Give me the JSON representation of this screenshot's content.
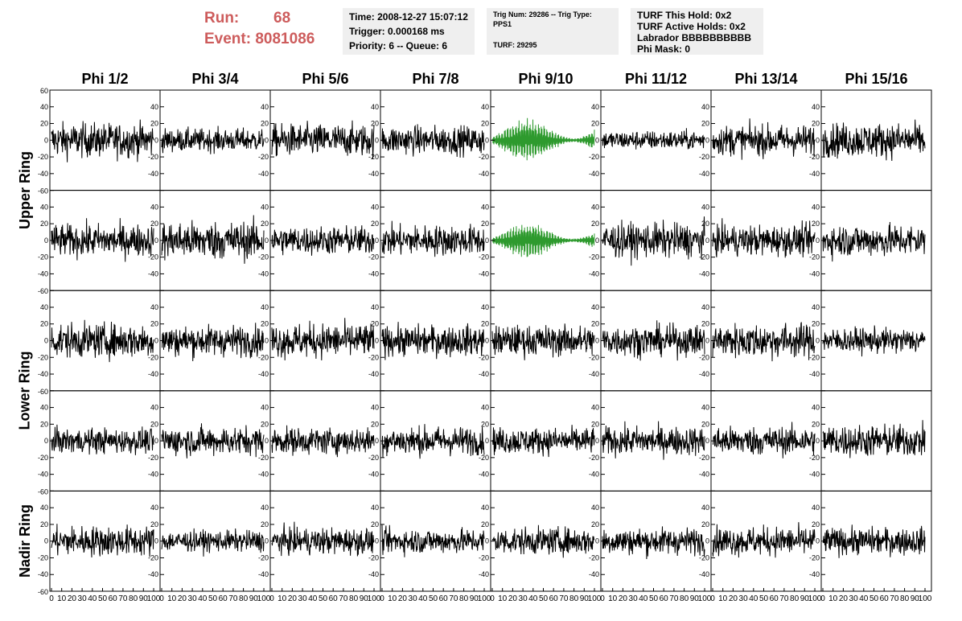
{
  "header": {
    "run_label": "Run:",
    "run_value": "68",
    "event_label": "Event:",
    "event_value": "8081086"
  },
  "info": {
    "time": "Time: 2008-12-27 15:07:12",
    "trigger": "Trigger: 0.000168 ms",
    "priority": "Priority: 6 -- Queue: 6",
    "trig_num": "Trig Num: 29286 -- Trig Type: PPS1",
    "turf": "TURF: 29295",
    "turf_this_hold": "TURF This Hold: 0x2",
    "turf_active_holds": "TURF Active Holds: 0x2",
    "labrador": "Labrador BBBBBBBBBB",
    "phi_mask": "Phi Mask: 0"
  },
  "colors": {
    "header_red": "#cd5c5c",
    "info_bg": "#efefef",
    "trace": "#000000",
    "trace_highlight": "#2e9a2e"
  },
  "chart_data": {
    "type": "line",
    "columns": [
      "Phi 1/2",
      "Phi 3/4",
      "Phi 5/6",
      "Phi 7/8",
      "Phi 9/10",
      "Phi 11/12",
      "Phi 13/14",
      "Phi 15/16"
    ],
    "rows": [
      "Upper Ring",
      "",
      "Lower Ring",
      "",
      "Nadir Ring"
    ],
    "ylim": [
      -60,
      60
    ],
    "xlim": [
      0,
      100
    ],
    "y_ticks": [
      -60,
      -40,
      -20,
      0,
      20,
      40,
      60
    ],
    "x_ticks": [
      0,
      10,
      20,
      30,
      40,
      50,
      60,
      70,
      80,
      90,
      100
    ],
    "samples_per_trace": 260,
    "highlighted_column": "Phi 9/10",
    "highlighted_rows": [
      0,
      1
    ],
    "amplitudes": [
      [
        18,
        12,
        17,
        15,
        22,
        10,
        16,
        18
      ],
      [
        17,
        20,
        15,
        16,
        18,
        18,
        16,
        17
      ],
      [
        18,
        16,
        18,
        16,
        16,
        16,
        18,
        13
      ],
      [
        13,
        15,
        14,
        15,
        14,
        15,
        15,
        17
      ],
      [
        16,
        11,
        14,
        13,
        14,
        14,
        15,
        14
      ]
    ],
    "grid": false
  }
}
